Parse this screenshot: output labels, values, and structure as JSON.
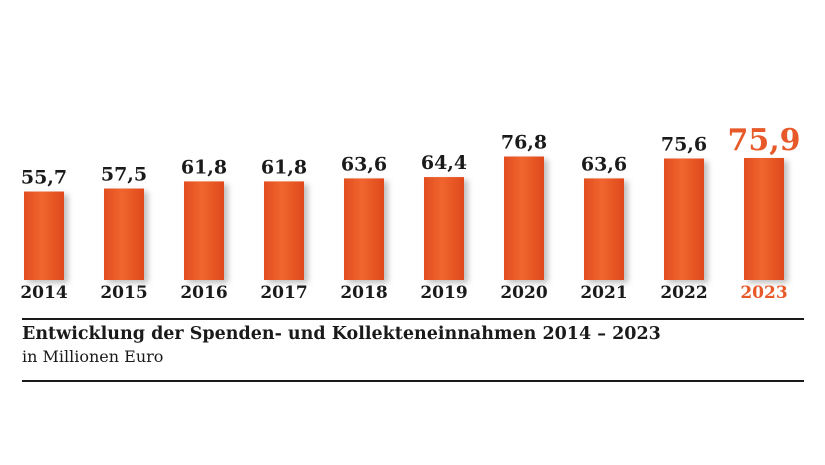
{
  "chart_data": {
    "type": "bar",
    "title": "Entwicklung der Spenden- und Kollekteneinnahmen 2014 – 2023",
    "subtitle": "in Millionen Euro",
    "categories": [
      "2014",
      "2015",
      "2016",
      "2017",
      "2018",
      "2019",
      "2020",
      "2021",
      "2022",
      "2023"
    ],
    "values": [
      55.7,
      57.5,
      61.8,
      61.8,
      63.6,
      64.4,
      76.8,
      63.6,
      75.6,
      75.9
    ],
    "value_labels": [
      "55,7",
      "57,5",
      "61,8",
      "61,8",
      "63,6",
      "64,4",
      "76,8",
      "63,6",
      "75,6",
      "75,9"
    ],
    "highlight_category": "2023",
    "bar_color": "#e8592a",
    "highlight_color": "#e8592a",
    "text_color": "#1a1a1a",
    "grid": false,
    "legend": "none"
  }
}
